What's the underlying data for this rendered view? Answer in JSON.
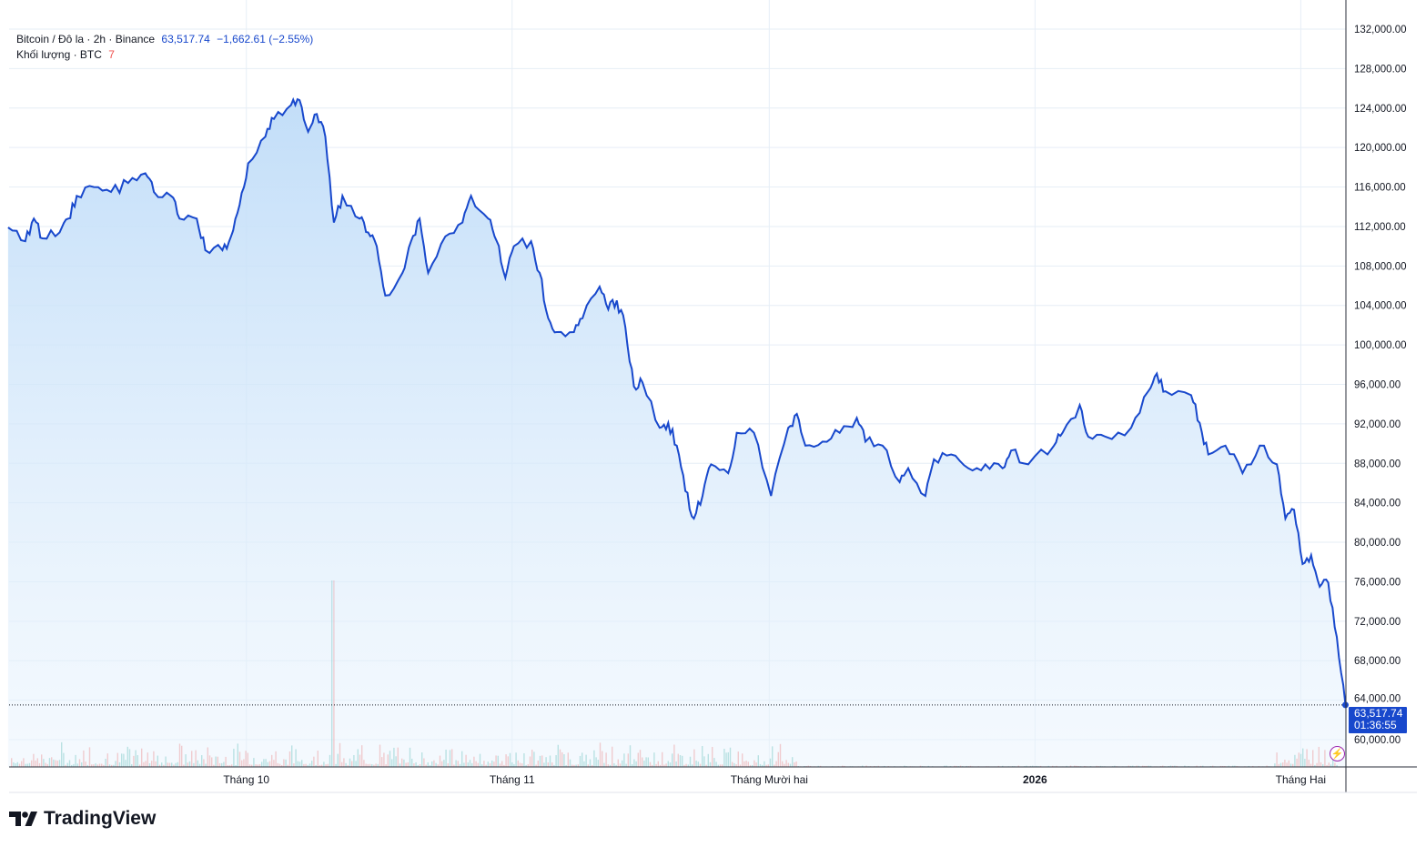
{
  "legend": {
    "symbol": "Bitcoin / Đô la · 2h · Binance",
    "last": "63,517.74",
    "change": "−1,662.61 (−2.55%)",
    "volume_label": "Khối lượng · BTC",
    "volume_value": "7"
  },
  "price_label": {
    "price": "63,517.74",
    "countdown": "01:36:55"
  },
  "brand": "TradingView",
  "colors": {
    "line": "#1848cc",
    "fill_top": "#bfdcf8",
    "grid": "#e0ecf5",
    "volume_up": "#26a69a",
    "volume_down": "#ef5350"
  },
  "chart_data": {
    "type": "area",
    "title": "",
    "xlabel": "",
    "ylabel": "",
    "ylim": [
      58000,
      132000
    ],
    "grid": true,
    "y_ticks": [
      "132,000.00",
      "128,000.00",
      "124,000.00",
      "120,000.00",
      "116,000.00",
      "112,000.00",
      "108,000.00",
      "104,000.00",
      "100,000.00",
      "96,000.00",
      "92,000.00",
      "88,000.00",
      "84,000.00",
      "80,000.00",
      "76,000.00",
      "72,000.00",
      "68,000.00",
      "64,000.00",
      "60,000.00"
    ],
    "x_ticks": [
      {
        "label": "Tháng 10",
        "date": "2025-10-01"
      },
      {
        "label": "Tháng 11",
        "date": "2025-11-01"
      },
      {
        "label": "Tháng Mười hai",
        "date": "2025-12-01"
      },
      {
        "label": "2026",
        "date": "2026-01-01"
      },
      {
        "label": "Tháng Hai",
        "date": "2026-02-01"
      }
    ],
    "series": [
      {
        "points": [
          [
            "2025-09-03",
            111900
          ],
          [
            "2025-09-05",
            110500
          ],
          [
            "2025-09-06",
            112800
          ],
          [
            "2025-09-07",
            110800
          ],
          [
            "2025-09-09",
            111400
          ],
          [
            "2025-09-10",
            112800
          ],
          [
            "2025-09-11",
            115100
          ],
          [
            "2025-09-13",
            116000
          ],
          [
            "2025-09-15",
            115500
          ],
          [
            "2025-09-17",
            116400
          ],
          [
            "2025-09-19",
            117400
          ],
          [
            "2025-09-20",
            115500
          ],
          [
            "2025-09-22",
            115100
          ],
          [
            "2025-09-23",
            112800
          ],
          [
            "2025-09-25",
            112800
          ],
          [
            "2025-09-26",
            109600
          ],
          [
            "2025-09-28",
            109600
          ],
          [
            "2025-09-29",
            111000
          ],
          [
            "2025-09-30",
            114200
          ],
          [
            "2025-10-01",
            118400
          ],
          [
            "2025-10-03",
            121100
          ],
          [
            "2025-10-04",
            122900
          ],
          [
            "2025-10-06",
            124300
          ],
          [
            "2025-10-07",
            124800
          ],
          [
            "2025-10-08",
            121600
          ],
          [
            "2025-10-09",
            123400
          ],
          [
            "2025-10-10",
            121100
          ],
          [
            "2025-10-11",
            112400
          ],
          [
            "2025-10-12",
            115100
          ],
          [
            "2025-10-14",
            112800
          ],
          [
            "2025-10-15",
            111400
          ],
          [
            "2025-10-16",
            110000
          ],
          [
            "2025-10-17",
            105000
          ],
          [
            "2025-10-19",
            107300
          ],
          [
            "2025-10-20",
            110500
          ],
          [
            "2025-10-21",
            112800
          ],
          [
            "2025-10-22",
            107300
          ],
          [
            "2025-10-24",
            111000
          ],
          [
            "2025-10-26",
            112400
          ],
          [
            "2025-10-27",
            115100
          ],
          [
            "2025-10-29",
            112800
          ],
          [
            "2025-10-30",
            110500
          ],
          [
            "2025-10-31",
            106800
          ],
          [
            "2025-11-01",
            110000
          ],
          [
            "2025-11-03",
            110500
          ],
          [
            "2025-11-04",
            107300
          ],
          [
            "2025-11-05",
            102700
          ],
          [
            "2025-11-06",
            101300
          ],
          [
            "2025-11-08",
            101300
          ],
          [
            "2025-11-09",
            102700
          ],
          [
            "2025-11-11",
            105900
          ],
          [
            "2025-11-12",
            103600
          ],
          [
            "2025-11-13",
            104500
          ],
          [
            "2025-11-14",
            101800
          ],
          [
            "2025-11-15",
            95800
          ],
          [
            "2025-11-16",
            96200
          ],
          [
            "2025-11-18",
            91600
          ],
          [
            "2025-11-19",
            92100
          ],
          [
            "2025-11-20",
            89800
          ],
          [
            "2025-11-21",
            85200
          ],
          [
            "2025-11-22",
            82400
          ],
          [
            "2025-11-23",
            84700
          ],
          [
            "2025-11-24",
            87900
          ],
          [
            "2025-11-26",
            87000
          ],
          [
            "2025-11-27",
            91100
          ],
          [
            "2025-11-29",
            91100
          ],
          [
            "2025-12-01",
            84700
          ],
          [
            "2025-12-03",
            91600
          ],
          [
            "2025-12-04",
            93000
          ],
          [
            "2025-12-05",
            89800
          ],
          [
            "2025-12-07",
            90200
          ],
          [
            "2025-12-09",
            91100
          ],
          [
            "2025-12-11",
            92600
          ],
          [
            "2025-12-12",
            90200
          ],
          [
            "2025-12-14",
            89800
          ],
          [
            "2025-12-16",
            86100
          ],
          [
            "2025-12-17",
            87500
          ],
          [
            "2025-12-19",
            84700
          ],
          [
            "2025-12-20",
            88400
          ],
          [
            "2025-12-22",
            88900
          ],
          [
            "2025-12-24",
            87500
          ],
          [
            "2025-12-26",
            87900
          ],
          [
            "2025-12-28",
            87500
          ],
          [
            "2025-12-29",
            89300
          ],
          [
            "2025-12-31",
            87900
          ],
          [
            "2026-01-03",
            89800
          ],
          [
            "2026-01-04",
            91100
          ],
          [
            "2026-01-06",
            93900
          ],
          [
            "2026-01-07",
            90700
          ],
          [
            "2026-01-09",
            90700
          ],
          [
            "2026-01-12",
            91600
          ],
          [
            "2026-01-14",
            95300
          ],
          [
            "2026-01-15",
            97100
          ],
          [
            "2026-01-16",
            95300
          ],
          [
            "2026-01-19",
            94900
          ],
          [
            "2026-01-20",
            92100
          ],
          [
            "2026-01-21",
            88900
          ],
          [
            "2026-01-23",
            89800
          ],
          [
            "2026-01-25",
            87000
          ],
          [
            "2026-01-27",
            89800
          ],
          [
            "2026-01-29",
            87900
          ],
          [
            "2026-01-30",
            82400
          ],
          [
            "2026-01-31",
            83300
          ],
          [
            "2026-02-01",
            77800
          ],
          [
            "2026-02-02",
            78700
          ],
          [
            "2026-02-03",
            75500
          ],
          [
            "2026-02-04",
            75900
          ],
          [
            "2026-02-05",
            70400
          ],
          [
            "2026-02-06",
            63517.74
          ]
        ]
      }
    ]
  }
}
